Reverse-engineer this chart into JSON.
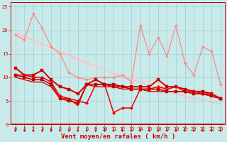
{
  "xlabel": "Vent moyen/en rafales ( km/h )",
  "xlim": [
    -0.5,
    23.5
  ],
  "ylim": [
    0,
    26
  ],
  "yticks": [
    0,
    5,
    10,
    15,
    20,
    25
  ],
  "xticks": [
    0,
    1,
    2,
    3,
    4,
    5,
    6,
    7,
    8,
    9,
    10,
    11,
    12,
    13,
    14,
    15,
    16,
    17,
    18,
    19,
    20,
    21,
    22,
    23
  ],
  "bg_color": "#c8eaea",
  "grid_color": "#9ecece",
  "series": [
    {
      "x": [
        0,
        1,
        2,
        3,
        4,
        5,
        6,
        7,
        8,
        9,
        10,
        11,
        12,
        13,
        14,
        15,
        16,
        17,
        18,
        19,
        20,
        21,
        22,
        23
      ],
      "y": [
        19.5,
        18.7,
        17.9,
        17.1,
        16.3,
        15.5,
        14.7,
        13.9,
        13.1,
        12.3,
        11.5,
        10.8,
        10.1,
        9.5,
        8.9,
        8.3,
        7.7,
        7.1,
        6.5,
        6.0,
        5.5,
        5.1,
        4.7,
        4.3
      ],
      "color": "#ffbbbb",
      "lw": 1.0,
      "marker": null
    },
    {
      "x": [
        0,
        1,
        2,
        3,
        4,
        5,
        6,
        7,
        8,
        9,
        10,
        11,
        12,
        13,
        14,
        15,
        16,
        17,
        18,
        19,
        20,
        21,
        22,
        23
      ],
      "y": [
        18.5,
        17.8,
        17.1,
        16.4,
        15.7,
        15.0,
        14.3,
        13.6,
        12.9,
        12.2,
        11.5,
        11.0,
        10.5,
        10.0,
        9.5,
        9.0,
        8.6,
        8.2,
        7.8,
        7.4,
        7.0,
        6.6,
        6.2,
        5.8
      ],
      "color": "#ffcccc",
      "lw": 0.9,
      "marker": null
    },
    {
      "x": [
        0,
        1,
        2,
        3,
        4,
        5,
        6,
        7,
        8,
        9,
        10,
        11,
        12,
        13,
        14,
        15,
        16,
        17,
        18,
        19,
        20,
        21,
        22,
        23
      ],
      "y": [
        19.0,
        18.0,
        23.5,
        20.5,
        16.5,
        15.0,
        11.0,
        10.0,
        9.5,
        10.0,
        10.0,
        10.0,
        10.5,
        9.0,
        21.0,
        15.0,
        18.5,
        14.5,
        21.0,
        13.0,
        10.5,
        16.5,
        15.5,
        8.5
      ],
      "color": "#ff8888",
      "lw": 0.9,
      "marker": "D",
      "ms": 2.0
    },
    {
      "x": [
        0,
        1,
        2,
        3,
        4,
        5,
        6,
        7,
        8,
        9,
        10,
        11,
        12,
        13,
        14,
        15,
        16,
        17,
        18,
        19,
        20,
        21,
        22,
        23
      ],
      "y": [
        12.0,
        10.5,
        10.5,
        11.5,
        9.5,
        8.0,
        7.5,
        6.5,
        8.5,
        9.5,
        8.5,
        8.5,
        8.0,
        8.0,
        8.0,
        8.0,
        9.5,
        8.0,
        8.0,
        7.5,
        7.0,
        7.0,
        6.5,
        5.5
      ],
      "color": "#cc0000",
      "lw": 1.4,
      "marker": "s",
      "ms": 2.5
    },
    {
      "x": [
        0,
        1,
        2,
        3,
        4,
        5,
        6,
        7,
        8,
        9,
        10,
        11,
        12,
        13,
        14,
        15,
        16,
        17,
        18,
        19,
        20,
        21,
        22,
        23
      ],
      "y": [
        10.5,
        10.5,
        10.0,
        10.0,
        9.0,
        6.0,
        5.5,
        5.0,
        4.5,
        8.5,
        8.5,
        2.5,
        3.5,
        3.5,
        7.5,
        7.5,
        8.0,
        7.5,
        8.0,
        7.0,
        7.0,
        6.5,
        6.5,
        5.5
      ],
      "color": "#ee0000",
      "lw": 1.1,
      "marker": "D",
      "ms": 2.2
    },
    {
      "x": [
        0,
        1,
        2,
        3,
        4,
        5,
        6,
        7,
        8,
        9,
        10,
        11,
        12,
        13,
        14,
        15,
        16,
        17,
        18,
        19,
        20,
        21,
        22,
        23
      ],
      "y": [
        10.5,
        10.0,
        9.5,
        9.5,
        8.5,
        5.5,
        5.0,
        4.5,
        8.5,
        8.5,
        8.5,
        8.0,
        8.0,
        7.5,
        7.5,
        7.5,
        7.5,
        7.0,
        7.0,
        7.0,
        6.5,
        6.5,
        6.0,
        5.5
      ],
      "color": "#bb0000",
      "lw": 1.1,
      "marker": "s",
      "ms": 2.2
    },
    {
      "x": [
        0,
        1,
        2,
        3,
        4,
        5,
        6,
        7,
        8,
        9,
        10,
        11,
        12,
        13,
        14,
        15,
        16,
        17,
        18,
        19,
        20,
        21,
        22,
        23
      ],
      "y": [
        10.0,
        9.5,
        9.0,
        9.0,
        8.0,
        5.5,
        5.5,
        4.0,
        8.5,
        8.0,
        8.0,
        8.0,
        7.5,
        7.5,
        7.5,
        7.0,
        7.0,
        7.0,
        7.0,
        7.0,
        6.5,
        6.5,
        6.0,
        5.5
      ],
      "color": "#dd0000",
      "lw": 1.0,
      "marker": null
    }
  ],
  "arrow_color": "#cc0000",
  "tick_fontsize": 5.0,
  "label_fontsize": 6.5
}
